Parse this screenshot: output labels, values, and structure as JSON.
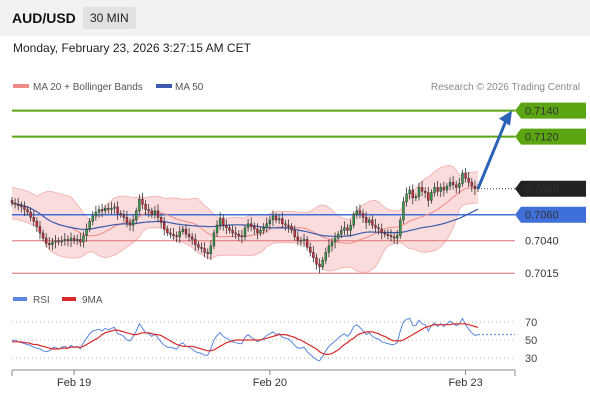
{
  "header": {
    "symbol": "AUD/USD",
    "timeframe": "30 MIN"
  },
  "timestamp": "Monday, February 23, 2026 3:27:15 AM CET",
  "copyright": "Research © 2026 Trading Central",
  "colors": {
    "up": "#2e9e44",
    "down": "#d6293b",
    "target": "#5aa511",
    "pivot": "#3f6fd9",
    "support": "#e07070",
    "ma20": "#f08a84",
    "ma50": "#3b5bb0",
    "bands": "#fbdcdc",
    "rsi": "#5a86dd",
    "rsi_ma": "#d92a2a",
    "arrow": "#2a62b5",
    "last": "#222222"
  },
  "chart_data": [
    {
      "type": "candlestick",
      "legend": [
        {
          "name": "MA 20 + Bollinger Bands",
          "color": "#f08a84"
        },
        {
          "name": "MA 50",
          "color": "#3b5bb0"
        }
      ],
      "x_ticks": [
        "Feb 19",
        "Feb 20",
        "Feb 23"
      ],
      "ylim": [
        0.70075,
        0.71505
      ],
      "levels": [
        {
          "value": 0.714,
          "label": "0.7140",
          "role": "target",
          "color": "#5aa511"
        },
        {
          "value": 0.712,
          "label": "0.7120",
          "role": "target",
          "color": "#5aa511"
        },
        {
          "value": 0.708,
          "label": "0.7080",
          "role": "last",
          "color": "#222222"
        },
        {
          "value": 0.706,
          "label": "0.7060",
          "role": "pivot",
          "color": "#3f6fd9"
        },
        {
          "value": 0.704,
          "label": "0.7040",
          "role": "support",
          "color": "#e07070"
        },
        {
          "value": 0.7015,
          "label": "0.7015",
          "role": "support",
          "color": "#e07070"
        }
      ],
      "projection": {
        "from": 0.708,
        "to": 0.714
      },
      "series": {
        "close": [
          0.7069,
          0.7068,
          0.7067,
          0.7066,
          0.7064,
          0.7062,
          0.7058,
          0.7055,
          0.7051,
          0.7046,
          0.7042,
          0.7038,
          0.7037,
          0.7039,
          0.704,
          0.7039,
          0.704,
          0.7041,
          0.704,
          0.7042,
          0.704,
          0.7041,
          0.7039,
          0.7044,
          0.7049,
          0.7055,
          0.7059,
          0.7062,
          0.7064,
          0.7063,
          0.7065,
          0.7064,
          0.7065,
          0.7066,
          0.7061,
          0.706,
          0.7058,
          0.7054,
          0.7052,
          0.7056,
          0.7063,
          0.7072,
          0.7068,
          0.7064,
          0.7063,
          0.706,
          0.7063,
          0.7058,
          0.7054,
          0.7049,
          0.7046,
          0.7045,
          0.7044,
          0.7043,
          0.7047,
          0.7049,
          0.7045,
          0.7043,
          0.7041,
          0.7037,
          0.7035,
          0.7034,
          0.7031,
          0.703,
          0.7036,
          0.7046,
          0.7052,
          0.7057,
          0.7052,
          0.705,
          0.7048,
          0.7046,
          0.7045,
          0.7044,
          0.7043,
          0.705,
          0.7053,
          0.7051,
          0.7049,
          0.7046,
          0.7048,
          0.705,
          0.7053,
          0.7056,
          0.7059,
          0.7056,
          0.7057,
          0.7053,
          0.7052,
          0.7051,
          0.7048,
          0.7043,
          0.704,
          0.704,
          0.7041,
          0.7035,
          0.7031,
          0.7027,
          0.7022,
          0.702,
          0.7025,
          0.7031,
          0.7036,
          0.7039,
          0.7042,
          0.7045,
          0.7048,
          0.705,
          0.7048,
          0.7052,
          0.706,
          0.7063,
          0.7061,
          0.7058,
          0.7054,
          0.7056,
          0.7052,
          0.705,
          0.7049,
          0.7046,
          0.7045,
          0.7044,
          0.7043,
          0.7042,
          0.7044,
          0.7056,
          0.707,
          0.7076,
          0.7079,
          0.7073,
          0.7074,
          0.7081,
          0.7078,
          0.7077,
          0.7071,
          0.7077,
          0.7081,
          0.7078,
          0.7081,
          0.7079,
          0.7082,
          0.7085,
          0.7083,
          0.7081,
          0.7084,
          0.7092,
          0.7088,
          0.7085,
          0.7082,
          0.708,
          0.7081
        ],
        "rsi": [
          49,
          50,
          48,
          47,
          46,
          45,
          44,
          42,
          41,
          40,
          38,
          37,
          38,
          41,
          42,
          40,
          42,
          43,
          41,
          44,
          42,
          43,
          40,
          47,
          52,
          57,
          60,
          61,
          62,
          60,
          63,
          61,
          63,
          64,
          57,
          56,
          54,
          50,
          49,
          54,
          60,
          68,
          63,
          58,
          57,
          54,
          57,
          52,
          48,
          44,
          42,
          42,
          41,
          40,
          45,
          47,
          43,
          42,
          40,
          37,
          36,
          35,
          33,
          33,
          40,
          50,
          55,
          58,
          54,
          52,
          50,
          48,
          47,
          46,
          46,
          53,
          56,
          53,
          51,
          48,
          50,
          52,
          55,
          57,
          59,
          56,
          57,
          53,
          52,
          51,
          48,
          44,
          41,
          41,
          42,
          37,
          34,
          31,
          28,
          27,
          32,
          38,
          43,
          46,
          49,
          52,
          55,
          57,
          54,
          58,
          65,
          67,
          64,
          60,
          56,
          58,
          54,
          52,
          51,
          48,
          47,
          46,
          45,
          45,
          47,
          60,
          70,
          73,
          74,
          66,
          66,
          72,
          68,
          67,
          60,
          66,
          69,
          65,
          68,
          65,
          68,
          71,
          68,
          66,
          68,
          74,
          67,
          62,
          58,
          55,
          56
        ],
        "rsi_ma": [
          48,
          48,
          48,
          48,
          47,
          47,
          46,
          45,
          45,
          44,
          43,
          42,
          41,
          40,
          40,
          40,
          41,
          41,
          41,
          42,
          42,
          42,
          42,
          43,
          45,
          47,
          49,
          51,
          53,
          56,
          58,
          59,
          60,
          61,
          61,
          60,
          59,
          58,
          57,
          56,
          56,
          57,
          58,
          58,
          58,
          57,
          56,
          56,
          55,
          53,
          51,
          49,
          47,
          45,
          44,
          43,
          43,
          43,
          43,
          42,
          41,
          40,
          39,
          38,
          38,
          39,
          41,
          43,
          45,
          47,
          48,
          49,
          50,
          50,
          50,
          50,
          50,
          50,
          50,
          50,
          50,
          51,
          52,
          53,
          54,
          55,
          56,
          56,
          56,
          55,
          54,
          53,
          51,
          50,
          48,
          46,
          44,
          42,
          40,
          37,
          35,
          34,
          34,
          35,
          37,
          39,
          42,
          45,
          47,
          50,
          52,
          55,
          57,
          58,
          59,
          59,
          59,
          58,
          57,
          55,
          54,
          52,
          50,
          49,
          49,
          49,
          50,
          52,
          54,
          56,
          58,
          60,
          62,
          64,
          65,
          66,
          67,
          67,
          67,
          67,
          67,
          67,
          68,
          68,
          68,
          68,
          68,
          67,
          66,
          65,
          64
        ]
      }
    },
    {
      "type": "line",
      "legend": [
        {
          "name": "RSI",
          "color": "#5a86dd"
        },
        {
          "name": "9MA",
          "color": "#d92a2a"
        }
      ],
      "ylim": [
        20,
        80
      ],
      "levels": [
        {
          "value": 70,
          "label": "70"
        },
        {
          "value": 50,
          "label": "50"
        },
        {
          "value": 30,
          "label": "30"
        }
      ]
    }
  ]
}
